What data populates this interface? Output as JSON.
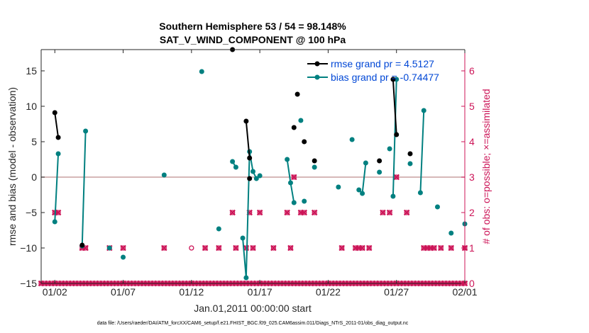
{
  "chart_data": {
    "type": "line",
    "title_line1": "Southern Hemisphere 53 / 54 = 98.148%",
    "title_line2": "SAT_V_WIND_COMPONENT @ 100 hPa",
    "xlabel": "Jan.01,2011 00:00:00 start",
    "ylabel": "rmse and bias (model - observation)",
    "ylabel_right": "# of obs: o=possible; ×=assimilated",
    "footnote": "data file: /Users/raeder/DAI/ATM_forcXX/CAM6_setup/f.e21.FHIST_BGC.f09_025.CAM6assim.011/Diags_NTrS_2011-01/obs_diag_output.nc",
    "xlim": [
      1,
      32
    ],
    "ylim": [
      -15,
      18
    ],
    "ylim_right": [
      0,
      6.6
    ],
    "x_ticks": [
      2,
      7,
      12,
      17,
      22,
      27,
      32
    ],
    "x_ticklabels": [
      "01/02",
      "01/07",
      "01/12",
      "01/17",
      "01/22",
      "01/27",
      "02/01"
    ],
    "y_ticks": [
      -15,
      -10,
      -5,
      0,
      5,
      10,
      15
    ],
    "y_ticklabels": [
      "−15",
      "−10",
      "−5",
      "0",
      "5",
      "10",
      "15"
    ],
    "y_right_ticks": [
      0,
      1,
      2,
      3,
      4,
      5,
      6
    ],
    "y_right_ticklabels": [
      "0",
      "1",
      "2",
      "3",
      "4",
      "5",
      "6"
    ],
    "legend": {
      "rmse_label": "rmse grand pr = 4.5127",
      "bias_label": "bias grand pr = -0.74477"
    },
    "colors": {
      "rmse": "#000000",
      "bias": "#008080",
      "obs": "#cc1457",
      "zero_line": "#c8a0a0"
    },
    "rmse_segments": [
      [
        [
          2.0,
          9.1
        ],
        [
          2.25,
          5.6
        ]
      ],
      [
        [
          4.0,
          -9.6
        ]
      ],
      [
        [
          15.0,
          18.0
        ]
      ],
      [
        [
          16.0,
          7.9
        ],
        [
          16.25,
          2.7
        ]
      ],
      [
        [
          16.25,
          -0.2
        ]
      ],
      [
        [
          19.5,
          7.0
        ]
      ],
      [
        [
          19.75,
          11.7
        ]
      ],
      [
        [
          20.25,
          5.0
        ]
      ],
      [
        [
          21.0,
          2.3
        ]
      ],
      [
        [
          25.75,
          2.3
        ]
      ],
      [
        [
          26.75,
          13.8
        ],
        [
          27.0,
          6.0
        ]
      ],
      [
        [
          28.0,
          3.3
        ]
      ]
    ],
    "bias_segments": [
      [
        [
          2.0,
          -6.3
        ],
        [
          2.25,
          3.3
        ]
      ],
      [
        [
          4.0,
          -9.7
        ],
        [
          4.25,
          6.5
        ]
      ],
      [
        [
          6.0,
          -10.0
        ]
      ],
      [
        [
          7.0,
          -11.3
        ]
      ],
      [
        [
          10.0,
          0.3
        ]
      ],
      [
        [
          12.75,
          14.9
        ]
      ],
      [
        [
          14.0,
          -7.3
        ]
      ],
      [
        [
          15.0,
          2.2
        ],
        [
          15.25,
          1.4
        ]
      ],
      [
        [
          15.75,
          -8.6
        ],
        [
          16.0,
          -14.2
        ],
        [
          16.25,
          3.6
        ],
        [
          16.5,
          0.8
        ],
        [
          16.75,
          -0.2
        ]
      ],
      [
        [
          17.0,
          0.2
        ]
      ],
      [
        [
          19.0,
          2.5
        ],
        [
          19.25,
          -0.8
        ],
        [
          19.5,
          -3.6
        ]
      ],
      [
        [
          20.0,
          8.0
        ]
      ],
      [
        [
          20.25,
          -3.4
        ]
      ],
      [
        [
          21.0,
          1.4
        ]
      ],
      [
        [
          22.75,
          -1.4
        ]
      ],
      [
        [
          23.75,
          5.3
        ]
      ],
      [
        [
          24.25,
          -1.8
        ],
        [
          24.5,
          -2.3
        ],
        [
          24.75,
          2.0
        ]
      ],
      [
        [
          25.75,
          0.7
        ]
      ],
      [
        [
          26.5,
          4.0
        ]
      ],
      [
        [
          26.75,
          -2.7
        ],
        [
          27.0,
          13.8
        ]
      ],
      [
        [
          28.0,
          1.9
        ]
      ],
      [
        [
          28.75,
          -2.2
        ],
        [
          29.0,
          9.4
        ]
      ],
      [
        [
          30.0,
          -4.2
        ]
      ],
      [
        [
          31.0,
          -7.9
        ]
      ],
      [
        [
          32.0,
          -6.6
        ]
      ]
    ],
    "obs_possible": [
      [
        2.0,
        2
      ],
      [
        2.25,
        2
      ],
      [
        4.0,
        1
      ],
      [
        4.25,
        1
      ],
      [
        6.0,
        1
      ],
      [
        7.0,
        1
      ],
      [
        10.0,
        1
      ],
      [
        12.0,
        1
      ],
      [
        13.0,
        1
      ],
      [
        14.0,
        1
      ],
      [
        15.0,
        2
      ],
      [
        15.25,
        1
      ],
      [
        16.0,
        1
      ],
      [
        16.25,
        2
      ],
      [
        16.5,
        1
      ],
      [
        17.0,
        2
      ],
      [
        18.0,
        1
      ],
      [
        19.0,
        2
      ],
      [
        19.25,
        1
      ],
      [
        19.5,
        3
      ],
      [
        20.0,
        2
      ],
      [
        20.25,
        2
      ],
      [
        21.0,
        2
      ],
      [
        23.0,
        1
      ],
      [
        24.0,
        1
      ],
      [
        24.25,
        1
      ],
      [
        24.5,
        1
      ],
      [
        25.0,
        1
      ],
      [
        26.0,
        2
      ],
      [
        26.5,
        2
      ],
      [
        27.0,
        3
      ],
      [
        27.75,
        2
      ],
      [
        29.0,
        1
      ],
      [
        29.25,
        1
      ],
      [
        29.5,
        1
      ],
      [
        29.75,
        1
      ],
      [
        30.25,
        1
      ],
      [
        31.0,
        1
      ],
      [
        32.0,
        1
      ]
    ],
    "obs_assimilated": [
      [
        2.0,
        2
      ],
      [
        2.25,
        2
      ],
      [
        4.0,
        1
      ],
      [
        4.25,
        1
      ],
      [
        6.0,
        1
      ],
      [
        7.0,
        1
      ],
      [
        10.0,
        1
      ],
      [
        13.0,
        1
      ],
      [
        14.0,
        1
      ],
      [
        15.0,
        2
      ],
      [
        15.25,
        1
      ],
      [
        16.0,
        1
      ],
      [
        16.25,
        2
      ],
      [
        16.5,
        1
      ],
      [
        17.0,
        2
      ],
      [
        18.0,
        1
      ],
      [
        19.0,
        2
      ],
      [
        19.25,
        1
      ],
      [
        19.5,
        3
      ],
      [
        20.0,
        2
      ],
      [
        20.25,
        2
      ],
      [
        21.0,
        2
      ],
      [
        23.0,
        1
      ],
      [
        24.0,
        1
      ],
      [
        24.25,
        1
      ],
      [
        24.5,
        1
      ],
      [
        25.0,
        1
      ],
      [
        26.0,
        2
      ],
      [
        26.5,
        2
      ],
      [
        27.0,
        3
      ],
      [
        27.75,
        2
      ],
      [
        29.0,
        1
      ],
      [
        29.25,
        1
      ],
      [
        29.5,
        1
      ],
      [
        29.75,
        1
      ],
      [
        30.25,
        1
      ],
      [
        31.0,
        1
      ],
      [
        32.0,
        1
      ]
    ],
    "obs_zero_x": [
      1.0,
      1.25,
      1.5,
      1.75,
      2.0,
      2.25,
      2.5,
      2.75,
      3.0,
      3.25,
      3.5,
      3.75,
      4.0,
      4.25,
      4.5,
      4.75,
      5.0,
      5.25,
      5.5,
      5.75,
      6.0,
      6.25,
      6.5,
      6.75,
      7.0,
      7.25,
      7.5,
      7.75,
      8.0,
      8.25,
      8.5,
      8.75,
      9.0,
      9.25,
      9.5,
      9.75,
      10.0,
      10.25,
      10.5,
      10.75,
      11.0,
      11.25,
      11.5,
      11.75,
      12.0,
      12.25,
      12.5,
      12.75,
      13.0,
      13.25,
      13.5,
      13.75,
      14.0,
      14.25,
      14.5,
      14.75,
      15.0,
      15.25,
      15.5,
      15.75,
      16.0,
      16.25,
      16.5,
      16.75,
      17.0,
      17.25,
      17.5,
      17.75,
      18.0,
      18.25,
      18.5,
      18.75,
      19.0,
      19.25,
      19.5,
      19.75,
      20.0,
      20.25,
      20.5,
      20.75,
      21.0,
      21.25,
      21.5,
      21.75,
      22.0,
      22.25,
      22.5,
      22.75,
      23.0,
      23.25,
      23.5,
      23.75,
      24.0,
      24.25,
      24.5,
      24.75,
      25.0,
      25.25,
      25.5,
      25.75,
      26.0,
      26.25,
      26.5,
      26.75,
      27.0,
      27.25,
      27.5,
      27.75,
      28.0,
      28.25,
      28.5,
      28.75,
      29.0,
      29.25,
      29.5,
      29.75,
      30.0,
      30.25,
      30.5,
      30.75,
      31.0,
      31.25,
      31.5,
      31.75,
      32.0
    ]
  }
}
